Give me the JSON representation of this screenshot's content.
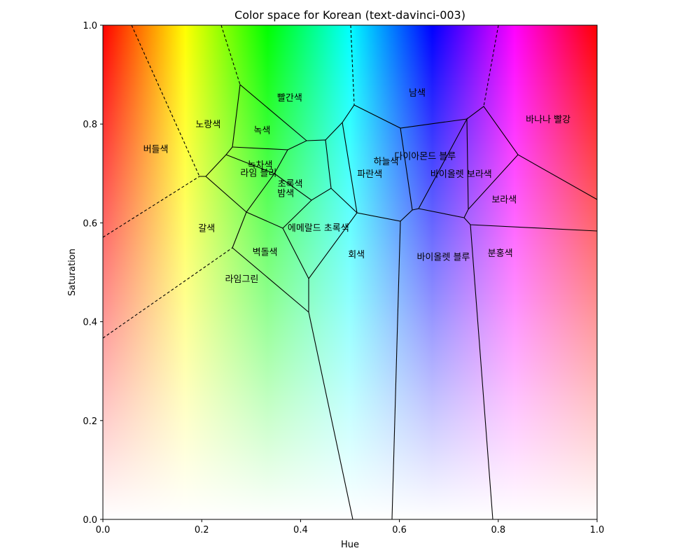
{
  "chart_data": {
    "type": "voronoi",
    "title": "Color space for Korean (text-davinci-003)",
    "xlabel": "Hue",
    "ylabel": "Saturation",
    "xlim": [
      0.0,
      1.0
    ],
    "ylim": [
      0.0,
      1.0
    ],
    "xticks": [
      "0.0",
      "0.2",
      "0.4",
      "0.6",
      "0.8",
      "1.0"
    ],
    "yticks": [
      "0.0",
      "0.2",
      "0.4",
      "0.6",
      "0.8",
      "1.0"
    ],
    "background": "hue-saturation gradient",
    "regions": [
      {
        "name": "버들색",
        "x": 0.107,
        "y": 0.75
      },
      {
        "name": "노랑색",
        "x": 0.213,
        "y": 0.8
      },
      {
        "name": "빨간색",
        "x": 0.378,
        "y": 0.854
      },
      {
        "name": "녹색",
        "x": 0.322,
        "y": 0.788
      },
      {
        "name": "남색",
        "x": 0.636,
        "y": 0.864
      },
      {
        "name": "바나나 빨강",
        "x": 0.901,
        "y": 0.81
      },
      {
        "name": "다이아몬드 블루",
        "x": 0.652,
        "y": 0.736
      },
      {
        "name": "하늘색",
        "x": 0.573,
        "y": 0.725
      },
      {
        "name": "녹차색",
        "x": 0.318,
        "y": 0.718
      },
      {
        "name": "라임 블리",
        "x": 0.315,
        "y": 0.702
      },
      {
        "name": "파란색",
        "x": 0.54,
        "y": 0.7
      },
      {
        "name": "바이올렛 보라색",
        "x": 0.725,
        "y": 0.7
      },
      {
        "name": "초록색",
        "x": 0.379,
        "y": 0.68
      },
      {
        "name": "밤색",
        "x": 0.37,
        "y": 0.661
      },
      {
        "name": "보라색",
        "x": 0.812,
        "y": 0.648
      },
      {
        "name": "갈색",
        "x": 0.21,
        "y": 0.59
      },
      {
        "name": "에메랄드 초록색",
        "x": 0.436,
        "y": 0.591
      },
      {
        "name": "벽돌색",
        "x": 0.328,
        "y": 0.542
      },
      {
        "name": "회색",
        "x": 0.513,
        "y": 0.537
      },
      {
        "name": "바이올렛 블루",
        "x": 0.689,
        "y": 0.532
      },
      {
        "name": "분홍색",
        "x": 0.804,
        "y": 0.54
      },
      {
        "name": "라임그린",
        "x": 0.281,
        "y": 0.487
      }
    ]
  }
}
